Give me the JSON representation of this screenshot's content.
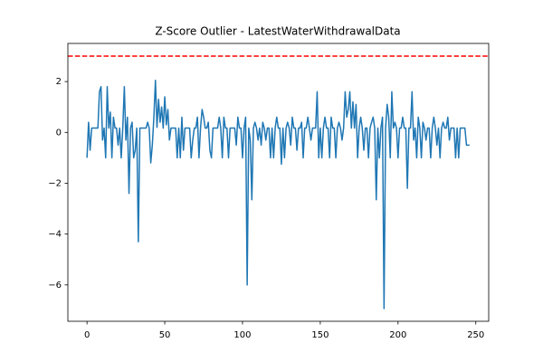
{
  "chart_data": {
    "type": "line",
    "title": "Z-Score Outlier - LatestWaterWithdrawalData",
    "color": "#1f77b4",
    "values": [
      -1.0,
      0.4,
      -0.7,
      0.17,
      0.17,
      0.17,
      0.17,
      0.17,
      1.6,
      1.8,
      -0.3,
      0.17,
      -1.0,
      1.8,
      0.17,
      0.8,
      -1.0,
      0.6,
      0.17,
      0.17,
      -0.5,
      0.17,
      -1.0,
      0.17,
      1.8,
      -0.3,
      0.6,
      -2.4,
      0.17,
      0.4,
      -1.0,
      -0.7,
      0.17,
      -4.3,
      0.17,
      0.17,
      0.17,
      0.17,
      0.17,
      0.4,
      0.17,
      -1.2,
      -0.5,
      0.6,
      2.05,
      0.2,
      1.3,
      0.4,
      1.0,
      0.17,
      1.4,
      0.3,
      0.9,
      -0.3,
      0.17,
      0.17,
      0.17,
      0.17,
      -1.0,
      0.17,
      -1.0,
      0.6,
      -0.7,
      0.17,
      0.17,
      0.17,
      0.17,
      -1.0,
      -0.3,
      0.17,
      0.17,
      0.6,
      -1.0,
      0.17,
      0.9,
      0.6,
      0.17,
      0.17,
      0.4,
      -0.7,
      -1.0,
      0.17,
      0.17,
      0.17,
      0.17,
      0.6,
      0.17,
      -1.0,
      0.6,
      0.17,
      0.17,
      -1.0,
      0.17,
      0.17,
      0.17,
      0.17,
      -0.5,
      0.6,
      0.17,
      0.17,
      -1.0,
      0.17,
      0.6,
      -6.0,
      0.17,
      -0.3,
      -2.65,
      0.17,
      0.4,
      0.17,
      -0.3,
      0.17,
      -0.5,
      0.4,
      0.17,
      -0.3,
      0.17,
      0.17,
      -1.0,
      0.17,
      -1.0,
      0.17,
      0.6,
      0.17,
      0.17,
      -1.25,
      0.17,
      -1.0,
      0.17,
      0.4,
      0.17,
      -0.5,
      0.6,
      0.17,
      0.17,
      -0.7,
      0.17,
      0.17,
      0.4,
      -1.0,
      0.17,
      0.17,
      0.6,
      0.17,
      -0.3,
      0.17,
      0.17,
      0.17,
      1.6,
      -1.0,
      0.17,
      -1.0,
      0.17,
      0.6,
      0.17,
      0.17,
      -1.0,
      0.6,
      0.17,
      0.17,
      -1.0,
      0.17,
      0.4,
      0.17,
      -0.3,
      0.17,
      1.6,
      0.6,
      0.9,
      1.6,
      0.17,
      1.2,
      0.17,
      1.1,
      -1.0,
      0.17,
      0.6,
      0.17,
      -0.7,
      0.17,
      0.17,
      -1.0,
      0.17,
      0.4,
      0.6,
      0.17,
      -2.65,
      0.17,
      -1.0,
      0.17,
      0.6,
      -6.93,
      0.17,
      1.1,
      0.6,
      -1.0,
      1.6,
      0.17,
      0.4,
      0.17,
      -1.0,
      0.17,
      0.17,
      0.6,
      0.17,
      0.17,
      -2.2,
      0.17,
      0.17,
      1.6,
      -0.3,
      0.17,
      -1.0,
      0.6,
      0.17,
      -1.0,
      0.4,
      0.17,
      -0.3,
      0.17,
      0.17,
      -1.0,
      0.17,
      0.6,
      0.17,
      -0.5,
      0.17,
      -1.0,
      0.17,
      0.4,
      0.17,
      0.17,
      0.6,
      -0.3,
      0.17,
      0.17,
      0.17,
      -1.0,
      0.17,
      -1.0,
      0.17,
      0.17,
      0.17,
      0.17,
      -0.5,
      -0.5,
      -0.5
    ],
    "threshold": {
      "value": 3,
      "color": "#ff0000"
    },
    "xlim": [
      -12.3,
      258.3
    ],
    "xticks": [
      0,
      50,
      100,
      150,
      200,
      250
    ],
    "ylim": [
      -7.43,
      3.5
    ],
    "yticks": [
      {
        "value": -6,
        "label": "−6"
      },
      {
        "value": -4,
        "label": "−4"
      },
      {
        "value": -2,
        "label": "−2"
      },
      0,
      2
    ],
    "grid": false
  }
}
